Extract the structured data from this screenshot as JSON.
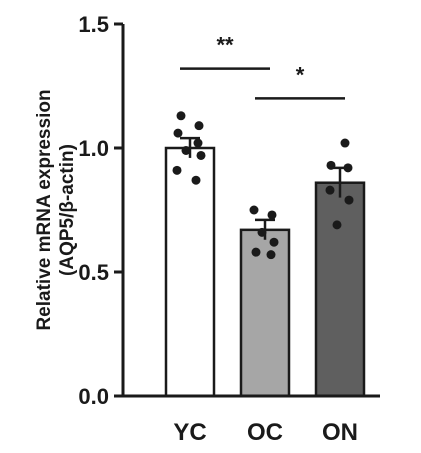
{
  "chart_data": {
    "type": "bar",
    "categories": [
      "YC",
      "OC",
      "ON"
    ],
    "values": [
      1.0,
      0.67,
      0.86
    ],
    "errors": [
      0.04,
      0.04,
      0.06
    ],
    "points": [
      [
        1.13,
        1.09,
        1.06,
        1.02,
        0.99,
        0.97,
        0.91,
        0.87
      ],
      [
        0.75,
        0.73,
        0.66,
        0.62,
        0.58,
        0.57
      ],
      [
        1.02,
        0.93,
        0.92,
        0.83,
        0.79,
        0.69
      ]
    ],
    "bar_colors": [
      "#ffffff",
      "#a6a6a6",
      "#5f5f5f"
    ],
    "ylabel_lines": [
      "Relative mRNA expression",
      "(AQP5/β-actin)"
    ],
    "ylim": [
      0.0,
      1.5
    ],
    "yticks": [
      "0.0",
      "0.5",
      "1.0",
      "1.5"
    ],
    "significance": [
      {
        "from": 0,
        "to": 1,
        "label": "**",
        "y": 1.32
      },
      {
        "from": 1,
        "to": 2,
        "label": "*",
        "y": 1.2
      }
    ]
  }
}
